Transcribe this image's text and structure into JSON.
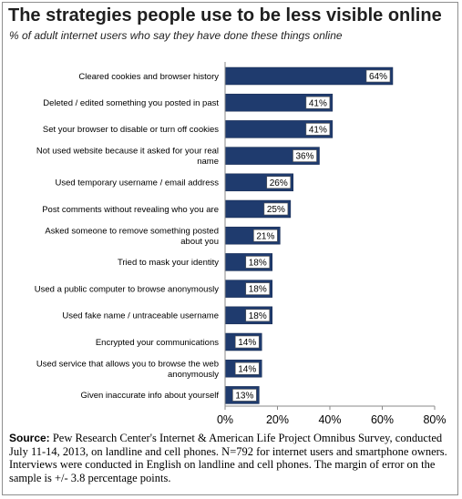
{
  "title": "The strategies people use to be less visible online",
  "subtitle": "% of adult internet users who say they have done these things online",
  "source": {
    "label": "Source:",
    "text": " Pew Research Center's Internet & American Life Project Omnibus Survey, conducted July 11-14, 2013, on landline and cell phones. N=792 for internet users and smartphone owners. Interviews were conducted in English on landline and cell phones. The margin of error on the sample is +/- 3.8 percentage points."
  },
  "colors": {
    "bar": "#1f3b6e",
    "bar_edge": "#16294f",
    "value_box_border": "#555555"
  },
  "chart_data": {
    "type": "bar",
    "orientation": "horizontal",
    "categories": [
      [
        "Cleared cookies and browser history"
      ],
      [
        "Deleted / edited something you posted in past"
      ],
      [
        "Set your browser to disable or turn off cookies"
      ],
      [
        "Not used website because it asked for your real",
        "name"
      ],
      [
        "Used temporary username / email address"
      ],
      [
        "Post comments without revealing who you are"
      ],
      [
        "Asked someone to remove something posted",
        "about you"
      ],
      [
        "Tried to mask your identity"
      ],
      [
        "Used a public computer to browse anonymously"
      ],
      [
        "Used fake name / untraceable username"
      ],
      [
        "Encrypted your communications"
      ],
      [
        "Used service that allows you to browse the web",
        "anonymously"
      ],
      [
        "Given inaccurate info about yourself"
      ]
    ],
    "values": [
      64,
      41,
      41,
      36,
      26,
      25,
      21,
      18,
      18,
      18,
      14,
      14,
      13
    ],
    "value_labels": [
      "64%",
      "41%",
      "41%",
      "36%",
      "26%",
      "25%",
      "21%",
      "18%",
      "18%",
      "18%",
      "14%",
      "14%",
      "13%"
    ],
    "xlim": [
      0,
      80
    ],
    "x_ticks": [
      0,
      20,
      40,
      60,
      80
    ],
    "x_tick_labels": [
      "0%",
      "20%",
      "40%",
      "60%",
      "80%"
    ],
    "grid": false,
    "legend": "none"
  }
}
